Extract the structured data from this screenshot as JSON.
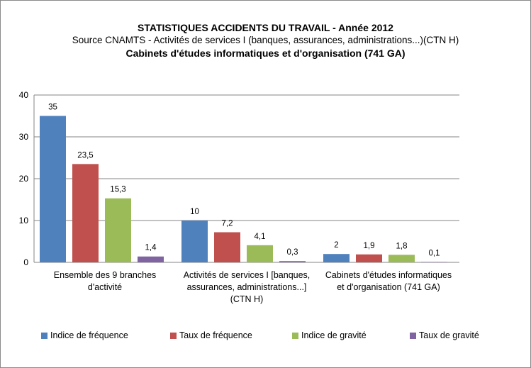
{
  "chart_data": {
    "type": "bar",
    "title": "STATISTIQUES ACCIDENTS DU TRAVAIL - Année 2012",
    "subtitle": "Source CNAMTS - Activités de services I (banques,  assurances, administrations...)(CTN H)",
    "subtitle2": "Cabinets d'études informatiques et d'organisation (741 GA)",
    "categories": [
      [
        "Ensemble des 9 branches",
        "d'activité"
      ],
      [
        "Activités de services I [banques,",
        "assurances, administrations...]",
        "(CTN H)"
      ],
      [
        "Cabinets d'études informatiques",
        "et d'organisation (741 GA)"
      ]
    ],
    "series": [
      {
        "name": "Indice de fréquence",
        "color": "#4F81BD",
        "values": [
          35,
          10,
          2
        ],
        "labels": [
          "35",
          "10",
          "2"
        ]
      },
      {
        "name": "Taux de fréquence",
        "color": "#C0504D",
        "values": [
          23.5,
          7.2,
          1.9
        ],
        "labels": [
          "23,5",
          "7,2",
          "1,9"
        ]
      },
      {
        "name": "Indice de gravité",
        "color": "#9BBB59",
        "values": [
          15.3,
          4.1,
          1.8
        ],
        "labels": [
          "15,3",
          "4,1",
          "1,8"
        ]
      },
      {
        "name": "Taux de gravité",
        "color": "#8064A2",
        "values": [
          1.4,
          0.3,
          0.1
        ],
        "labels": [
          "1,4",
          "0,3",
          "0,1"
        ]
      }
    ],
    "ylim": [
      0,
      40
    ],
    "yticks": [
      0,
      10,
      20,
      30,
      40
    ],
    "grid": true,
    "legend": "bottom"
  }
}
